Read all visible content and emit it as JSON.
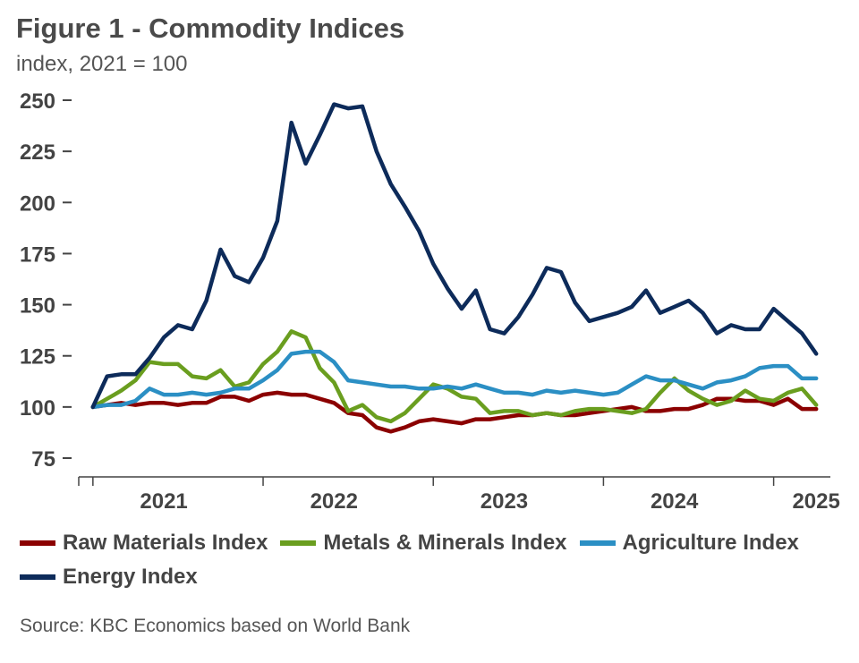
{
  "title": "Figure 1 - Commodity Indices",
  "subtitle": "index, 2021 = 100",
  "source": "Source: KBC Economics based on World Bank",
  "chart_data": {
    "type": "line",
    "title": "Figure 1 - Commodity Indices",
    "subtitle": "index, 2021 = 100",
    "ylabel": "",
    "xlabel": "",
    "ylim": [
      75,
      250
    ],
    "yticks": [
      75,
      100,
      125,
      150,
      175,
      200,
      225,
      250
    ],
    "xlim": [
      "2020-12",
      "2025-05"
    ],
    "x_tick_labels": [
      "2021",
      "2022",
      "2023",
      "2024",
      "2025"
    ],
    "x_label_month_positions": [
      "2021-06",
      "2022-06",
      "2023-06",
      "2024-06",
      "2025-04"
    ],
    "x_tick_month_positions": [
      "2021-01",
      "2022-01",
      "2023-01",
      "2024-01",
      "2025-01"
    ],
    "grid": false,
    "legend_position": "bottom",
    "x": [
      "2021-01",
      "2021-02",
      "2021-03",
      "2021-04",
      "2021-05",
      "2021-06",
      "2021-07",
      "2021-08",
      "2021-09",
      "2021-10",
      "2021-11",
      "2021-12",
      "2022-01",
      "2022-02",
      "2022-03",
      "2022-04",
      "2022-05",
      "2022-06",
      "2022-07",
      "2022-08",
      "2022-09",
      "2022-10",
      "2022-11",
      "2022-12",
      "2023-01",
      "2023-02",
      "2023-03",
      "2023-04",
      "2023-05",
      "2023-06",
      "2023-07",
      "2023-08",
      "2023-09",
      "2023-10",
      "2023-11",
      "2023-12",
      "2024-01",
      "2024-02",
      "2024-03",
      "2024-04",
      "2024-05",
      "2024-06",
      "2024-07",
      "2024-08",
      "2024-09",
      "2024-10",
      "2024-11",
      "2024-12",
      "2025-01",
      "2025-02",
      "2025-03",
      "2025-04"
    ],
    "series": [
      {
        "name": "Raw Materials Index",
        "color": "#8b0000",
        "values": [
          100,
          101,
          102,
          101,
          102,
          102,
          101,
          102,
          102,
          105,
          105,
          103,
          106,
          107,
          106,
          106,
          104,
          102,
          97,
          96,
          90,
          88,
          90,
          93,
          94,
          93,
          92,
          94,
          94,
          95,
          96,
          96,
          97,
          96,
          96,
          97,
          98,
          99,
          100,
          98,
          98,
          99,
          99,
          101,
          104,
          104,
          103,
          103,
          101,
          104,
          99,
          99
        ]
      },
      {
        "name": "Metals & Minerals Index",
        "color": "#6a9e1f",
        "values": [
          100,
          104,
          108,
          113,
          122,
          121,
          121,
          115,
          114,
          118,
          110,
          112,
          121,
          127,
          137,
          134,
          119,
          112,
          98,
          101,
          95,
          93,
          97,
          104,
          111,
          109,
          105,
          104,
          97,
          98,
          98,
          96,
          97,
          96,
          98,
          99,
          99,
          98,
          97,
          99,
          107,
          114,
          108,
          104,
          101,
          103,
          108,
          104,
          103,
          107,
          109,
          101
        ]
      },
      {
        "name": "Agriculture Index",
        "color": "#2b8fc4",
        "values": [
          100,
          101,
          101,
          103,
          109,
          106,
          106,
          107,
          106,
          107,
          109,
          109,
          113,
          118,
          126,
          127,
          127,
          122,
          113,
          112,
          111,
          110,
          110,
          109,
          109,
          110,
          109,
          111,
          109,
          107,
          107,
          106,
          108,
          107,
          108,
          107,
          106,
          107,
          111,
          115,
          113,
          113,
          111,
          109,
          112,
          113,
          115,
          119,
          120,
          120,
          114,
          114
        ]
      },
      {
        "name": "Energy Index",
        "color": "#0d2b5a",
        "values": [
          100,
          115,
          116,
          116,
          124,
          134,
          140,
          138,
          152,
          177,
          164,
          161,
          173,
          191,
          239,
          219,
          233,
          248,
          246,
          247,
          225,
          209,
          198,
          186,
          170,
          158,
          148,
          157,
          138,
          136,
          144,
          155,
          168,
          166,
          151,
          142,
          144,
          146,
          149,
          157,
          146,
          149,
          152,
          146,
          136,
          140,
          138,
          138,
          148,
          142,
          136,
          126
        ]
      }
    ]
  }
}
